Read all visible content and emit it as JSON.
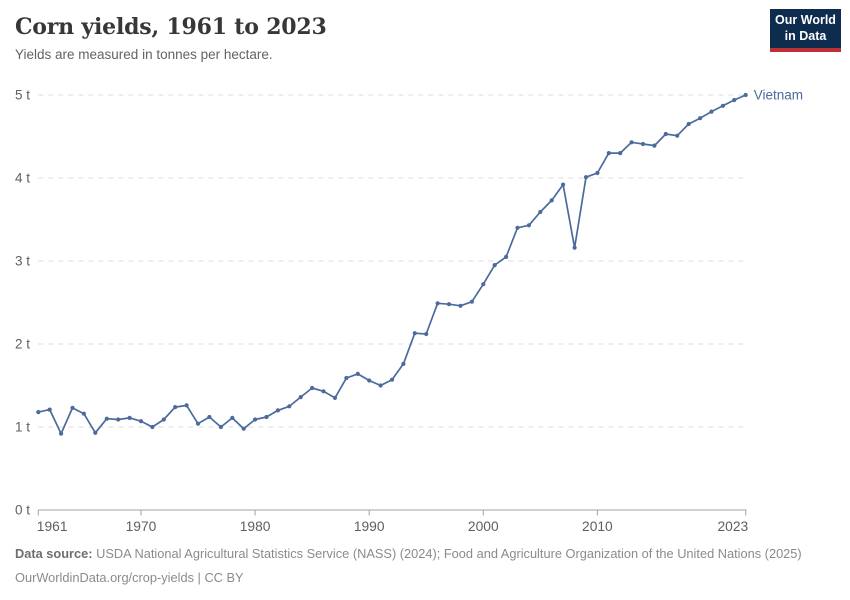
{
  "header": {
    "title": "Corn yields, 1961 to 2023",
    "subtitle": "Yields are measured in tonnes per hectare."
  },
  "logo": {
    "line1": "Our World",
    "line2": "in Data"
  },
  "chart_data": {
    "type": "line",
    "title": "Corn yields, 1961 to 2023",
    "unit": "tonnes per hectare",
    "xlim": [
      1961,
      2023
    ],
    "ylim": [
      0,
      5
    ],
    "grid": true,
    "grid_style": "dashed",
    "legend_position": "end-of-line",
    "x_ticks": [
      {
        "v": 1961,
        "label": "1961"
      },
      {
        "v": 1970,
        "label": "1970"
      },
      {
        "v": 1980,
        "label": "1980"
      },
      {
        "v": 1990,
        "label": "1990"
      },
      {
        "v": 2000,
        "label": "2000"
      },
      {
        "v": 2010,
        "label": "2010"
      },
      {
        "v": 2023,
        "label": "2023"
      }
    ],
    "y_ticks": [
      {
        "v": 0,
        "label": "0 t"
      },
      {
        "v": 1,
        "label": "1 t"
      },
      {
        "v": 2,
        "label": "2 t"
      },
      {
        "v": 3,
        "label": "3 t"
      },
      {
        "v": 4,
        "label": "4 t"
      },
      {
        "v": 5,
        "label": "5 t"
      }
    ],
    "series": [
      {
        "name": "Vietnam",
        "color": "#4C6A9C",
        "years": [
          1961,
          1962,
          1963,
          1964,
          1965,
          1966,
          1967,
          1968,
          1969,
          1970,
          1971,
          1972,
          1973,
          1974,
          1975,
          1976,
          1977,
          1978,
          1979,
          1980,
          1981,
          1982,
          1983,
          1984,
          1985,
          1986,
          1987,
          1988,
          1989,
          1990,
          1991,
          1992,
          1993,
          1994,
          1995,
          1996,
          1997,
          1998,
          1999,
          2000,
          2001,
          2002,
          2003,
          2004,
          2005,
          2006,
          2007,
          2008,
          2009,
          2010,
          2011,
          2012,
          2013,
          2014,
          2015,
          2016,
          2017,
          2018,
          2019,
          2020,
          2021,
          2022,
          2023
        ],
        "values": [
          1.18,
          1.21,
          0.92,
          1.23,
          1.16,
          0.93,
          1.1,
          1.09,
          1.11,
          1.07,
          1.0,
          1.09,
          1.24,
          1.26,
          1.04,
          1.12,
          1.0,
          1.11,
          0.98,
          1.09,
          1.12,
          1.2,
          1.25,
          1.36,
          1.47,
          1.43,
          1.35,
          1.59,
          1.64,
          1.56,
          1.5,
          1.57,
          1.76,
          2.13,
          2.12,
          2.49,
          2.48,
          2.46,
          2.51,
          2.72,
          2.95,
          3.05,
          3.4,
          3.43,
          3.59,
          3.73,
          3.92,
          3.16,
          4.01,
          4.06,
          4.3,
          4.3,
          4.43,
          4.41,
          4.39,
          4.53,
          4.51,
          4.65,
          4.72,
          4.8,
          4.87,
          4.94,
          5.0
        ]
      }
    ]
  },
  "footer": {
    "label": "Data source:",
    "sources": " USDA National Agricultural Statistics Service (NASS) (2024); Food and Agriculture Organization of the United Nations (2025)",
    "link": "OurWorldinData.org/crop-yields",
    "separator": " | ",
    "license": "CC BY"
  },
  "colors": {
    "line": "#4C6A9C",
    "entity_label": "#4C6A9C",
    "grid": "#dcdcdc",
    "axis": "#a3a3a3",
    "tick_text": "#5f5f5f",
    "logo_bg": "#0d2c4e",
    "logo_accent": "#bf3036"
  }
}
